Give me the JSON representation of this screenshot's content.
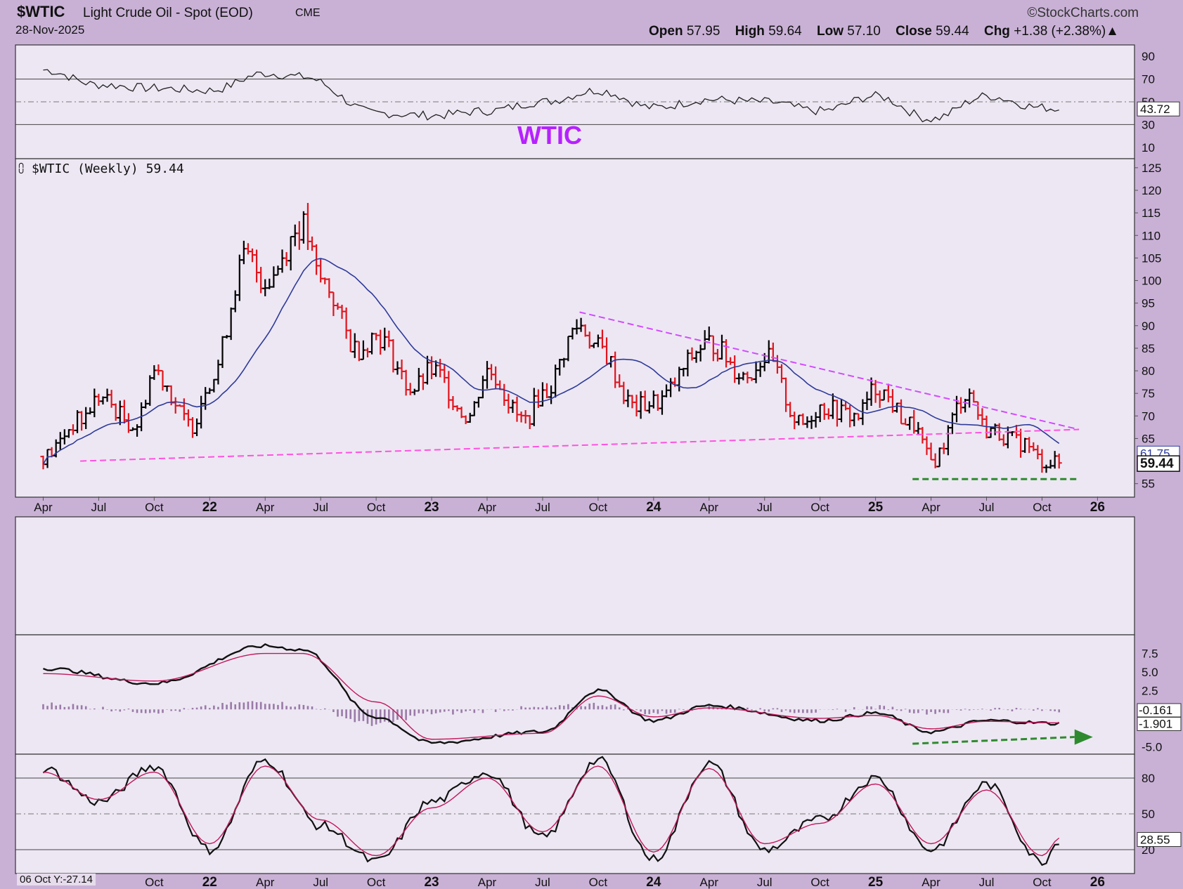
{
  "header": {
    "symbol": "$WTIC",
    "description": "Light Crude Oil - Spot (EOD)",
    "exchange": "CME",
    "date": "28-Nov-2025",
    "brand": "©StockCharts.com",
    "open_label": "Open",
    "open": "57.95",
    "high_label": "High",
    "high": "59.64",
    "low_label": "Low",
    "low": "57.10",
    "close_label": "Close",
    "close": "59.44",
    "chg_label": "Chg",
    "chg": "+1.38 (+2.38%)▲"
  },
  "annotation": {
    "text": "WTIC",
    "color": "#b621ff"
  },
  "price_panel": {
    "title": "$WTIC (Weekly) 59.44"
  },
  "footer": {
    "note": "06 Oct Y:-27.14"
  },
  "colors": {
    "background": "#c9b1d6",
    "panel": "#ede7f3",
    "up_bar": "#000000",
    "down_bar": "#e0141c",
    "ma": "#2e3a9a",
    "trend_magenta": "#d24bff",
    "support_green": "#2f8a2f"
  },
  "chart_data": [
    {
      "type": "line",
      "name": "RSI",
      "ylim": [
        0,
        100
      ],
      "yticks": [
        90,
        70,
        50,
        30,
        10
      ],
      "reference_lines": [
        70,
        50,
        30
      ],
      "last_value_label": "43.72",
      "x": [
        "2021-04",
        "2021-07",
        "2021-10",
        "2022-01",
        "2022-04",
        "2022-06",
        "2022-10",
        "2023-01",
        "2023-04",
        "2023-07",
        "2023-10",
        "2024-01",
        "2024-04",
        "2024-07",
        "2024-10",
        "2025-01",
        "2025-04",
        "2025-07",
        "2025-10",
        "2025-11"
      ],
      "values": [
        78,
        65,
        62,
        60,
        75,
        72,
        40,
        38,
        42,
        50,
        60,
        45,
        52,
        50,
        42,
        55,
        35,
        55,
        45,
        43.72
      ]
    },
    {
      "type": "bar",
      "name": "$WTIC (Weekly)",
      "ylim": [
        52,
        127
      ],
      "yticks": [
        125,
        120,
        115,
        110,
        105,
        100,
        95,
        90,
        85,
        80,
        75,
        70,
        65,
        55
      ],
      "x_tick_labels": [
        "Apr",
        "Jul",
        "Oct",
        "22",
        "Apr",
        "Jul",
        "Oct",
        "23",
        "Apr",
        "Jul",
        "Oct",
        "24",
        "Apr",
        "Jul",
        "Oct",
        "25",
        "Apr",
        "Jul",
        "Oct",
        "26"
      ],
      "ma_last_label": "61.75",
      "last_price_label": "59.44",
      "approx_closes": {
        "x": [
          "2021-04",
          "2021-06",
          "2021-07",
          "2021-09",
          "2021-10",
          "2021-12",
          "2022-01",
          "2022-03",
          "2022-04",
          "2022-06",
          "2022-07",
          "2022-09",
          "2022-10",
          "2022-12",
          "2023-01",
          "2023-03",
          "2023-04",
          "2023-06",
          "2023-07",
          "2023-09",
          "2023-10",
          "2023-12",
          "2024-01",
          "2024-04",
          "2024-06",
          "2024-07",
          "2024-09",
          "2024-10",
          "2024-12",
          "2025-01",
          "2025-03",
          "2025-04",
          "2025-06",
          "2025-07",
          "2025-09",
          "2025-10",
          "2025-11"
        ],
        "values": [
          61,
          69,
          74,
          68,
          80,
          68,
          78,
          105,
          100,
          112,
          100,
          85,
          88,
          76,
          80,
          70,
          80,
          69,
          75,
          90,
          85,
          72,
          73,
          86,
          79,
          83,
          68,
          72,
          70,
          76,
          68,
          60,
          75,
          67,
          64,
          60,
          59.44
        ]
      },
      "lines": [
        {
          "name": "upper downtrend",
          "style": "dashed",
          "color": "#d24bff",
          "from": [
            "2023-09",
            93
          ],
          "to": [
            "2025-12",
            67
          ]
        },
        {
          "name": "lower trendline",
          "style": "dashed",
          "color": "#ff52e0",
          "from": [
            "2021-06",
            60
          ],
          "to": [
            "2025-12",
            67
          ]
        },
        {
          "name": "support",
          "style": "dashed",
          "color": "#2f8a2f",
          "from": [
            "2025-03",
            56
          ],
          "to": [
            "2025-12",
            56
          ]
        }
      ]
    },
    {
      "type": "line",
      "name": "MACD",
      "ylim": [
        -6,
        10
      ],
      "yticks": [
        7.5,
        5.0,
        2.5,
        -5.0
      ],
      "last_value_labels": [
        "-0.161",
        "-1.901"
      ],
      "x": [
        "2021-04",
        "2021-10",
        "2022-04",
        "2022-06",
        "2022-10",
        "2023-01",
        "2023-07",
        "2023-10",
        "2024-01",
        "2024-04",
        "2024-10",
        "2025-01",
        "2025-04",
        "2025-07",
        "2025-11"
      ],
      "series": [
        {
          "values": [
            5.5,
            3.5,
            8.5,
            8.0,
            -1.0,
            -4.5,
            -3.0,
            2.5,
            -1.5,
            0.5,
            -1.5,
            -0.5,
            -3.0,
            -1.5,
            -1.9
          ]
        },
        {
          "values": [
            4.8,
            3.8,
            7.5,
            7.5,
            1.0,
            -4.0,
            -3.2,
            1.8,
            -1.0,
            0.2,
            -1.2,
            -0.8,
            -2.6,
            -1.6,
            -1.8
          ]
        }
      ],
      "histogram_values": [
        0.7,
        -0.3,
        1.0,
        0.5,
        -2.0,
        -0.5,
        0.2,
        0.7,
        -0.5,
        0.3,
        -0.3,
        0.3,
        -0.4,
        0.1,
        -0.161
      ]
    },
    {
      "type": "line",
      "name": "Stochastic",
      "ylim": [
        0,
        100
      ],
      "yticks": [
        80,
        50,
        20
      ],
      "reference_lines": [
        80,
        50,
        20
      ],
      "last_value_label": "28.55",
      "x": [
        "2021-04",
        "2021-07",
        "2021-10",
        "2022-01",
        "2022-04",
        "2022-07",
        "2022-10",
        "2023-01",
        "2023-04",
        "2023-07",
        "2023-10",
        "2024-01",
        "2024-04",
        "2024-07",
        "2024-10",
        "2025-01",
        "2025-04",
        "2025-07",
        "2025-10",
        "2025-11"
      ],
      "series": [
        {
          "values": [
            88,
            60,
            90,
            20,
            95,
            40,
            10,
            60,
            85,
            30,
            95,
            12,
            92,
            20,
            45,
            80,
            20,
            75,
            10,
            28.55
          ]
        },
        {
          "values": [
            85,
            62,
            85,
            25,
            90,
            45,
            15,
            55,
            80,
            35,
            90,
            18,
            88,
            25,
            42,
            75,
            25,
            70,
            15,
            30
          ]
        }
      ]
    }
  ]
}
